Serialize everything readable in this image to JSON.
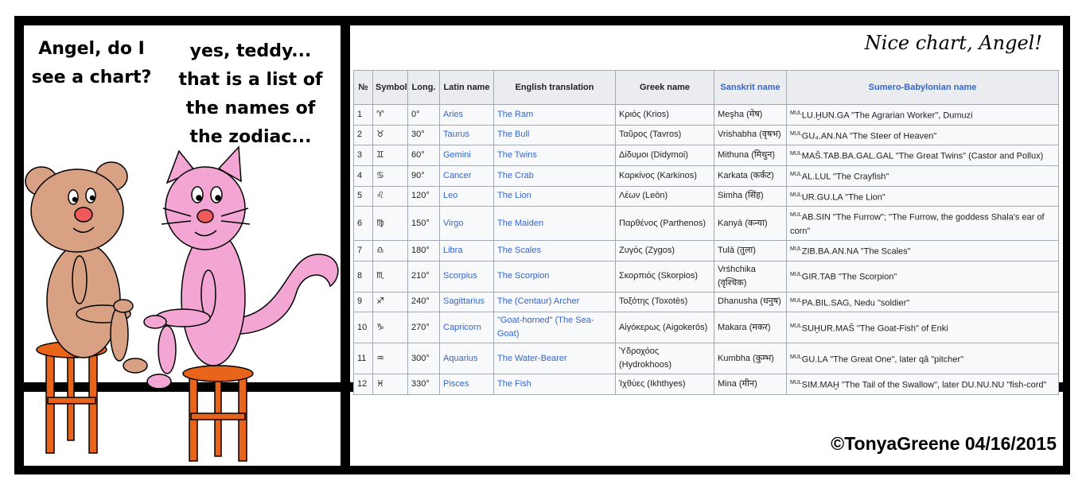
{
  "teddy_speech": [
    "Angel, do I",
    "see a chart?"
  ],
  "angel_speech": [
    "yes, teddy...",
    "that is a list of",
    "the names of",
    "the zodiac..."
  ],
  "caption": "Nice chart, Angel!",
  "copyright": "©TonyaGreene 04/16/2015",
  "table": {
    "headers": [
      "№",
      "Symbol",
      "Long.",
      "Latin name",
      "English translation",
      "Greek name",
      "Sanskrit name",
      "Sumero-Babylonian name"
    ],
    "rows": [
      [
        "1",
        "♈︎",
        "0°",
        "Aries",
        "The Ram",
        "Κριός (Krios)",
        "Meşha (मेष)",
        {
          "sup": "MUL",
          "text": "LU.ḪUN.GA \"The Agrarian Worker\", Dumuzi"
        }
      ],
      [
        "2",
        "♉︎",
        "30°",
        "Taurus",
        "The Bull",
        "Ταῦρος (Tavros)",
        "Vrishabha (वृषभ)",
        {
          "sup": "MUL",
          "text": "GU₄.AN.NA \"The Steer of Heaven\""
        }
      ],
      [
        "3",
        "♊︎",
        "60°",
        "Gemini",
        "The Twins",
        "Δίδυμοι (Didymoi)",
        "Mithuna (मिथुन)",
        {
          "sup": "MUL",
          "text": "MAŠ.TAB.BA.GAL.GAL \"The Great Twins\" (Castor and Pollux)"
        }
      ],
      [
        "4",
        "♋︎",
        "90°",
        "Cancer",
        "The Crab",
        "Καρκίνος (Karkinos)",
        "Karkata (कर्कट)",
        {
          "sup": "MUL",
          "text": "AL.LUL \"The Crayfish\""
        }
      ],
      [
        "5",
        "♌︎",
        "120°",
        "Leo",
        "The Lion",
        "Λέων (Leōn)",
        "Simha (सिंह)",
        {
          "sup": "MUL",
          "text": "UR.GU.LA \"The Lion\""
        }
      ],
      [
        "6",
        "♍︎",
        "150°",
        "Virgo",
        "The Maiden",
        "Παρθένος (Parthenos)",
        "Kanyā (कन्या)",
        {
          "sup": "MUL",
          "text": "AB.SIN \"The Furrow\"; \"The Furrow, the goddess Shala's ear of corn\""
        }
      ],
      [
        "7",
        "♎︎",
        "180°",
        "Libra",
        "The Scales",
        "Ζυγός (Zygos)",
        "Tulā (तुला)",
        {
          "sup": "MUL",
          "text": "ZIB.BA.AN.NA \"The Scales\""
        }
      ],
      [
        "8",
        "♏︎",
        "210°",
        "Scorpius",
        "The Scorpion",
        "Σκορπιός (Skorpios)",
        "Vrśhchika (वृश्चिक)",
        {
          "sup": "MUL",
          "text": "GIR.TAB \"The Scorpion\""
        }
      ],
      [
        "9",
        "♐︎",
        "240°",
        "Sagittarius",
        "The (Centaur) Archer",
        "Τοξότης (Toxotēs)",
        "Dhanusha (धनुष)",
        {
          "sup": "MUL",
          "text": "PA.BIL.SAG, Nedu \"soldier\""
        }
      ],
      [
        "10",
        "♑︎",
        "270°",
        "Capricorn",
        "\"Goat-horned\" (The Sea-Goat)",
        "Αἰγόκερως (Aigokerōs)",
        "Makara (मकर)",
        {
          "sup": "MUL",
          "text": "SUḪUR.MAŠ \"The Goat-Fish\" of Enki"
        }
      ],
      [
        "11",
        "♒︎",
        "300°",
        "Aquarius",
        "The Water-Bearer",
        "Ὑδροχόος (Hydrokhoos)",
        "Kumbha (कुम्भ)",
        {
          "sup": "MUL",
          "text": "GU.LA \"The Great One\", later qâ \"pitcher\""
        }
      ],
      [
        "12",
        "♓︎",
        "330°",
        "Pisces",
        "The Fish",
        "Ἰχθύες (Ikhthyes)",
        "Mina (मीन)",
        {
          "sup": "MUL",
          "text": "SIM.MAḪ \"The Tail of the Swallow\", later DU.NU.NU \"fish-cord\""
        }
      ]
    ]
  }
}
